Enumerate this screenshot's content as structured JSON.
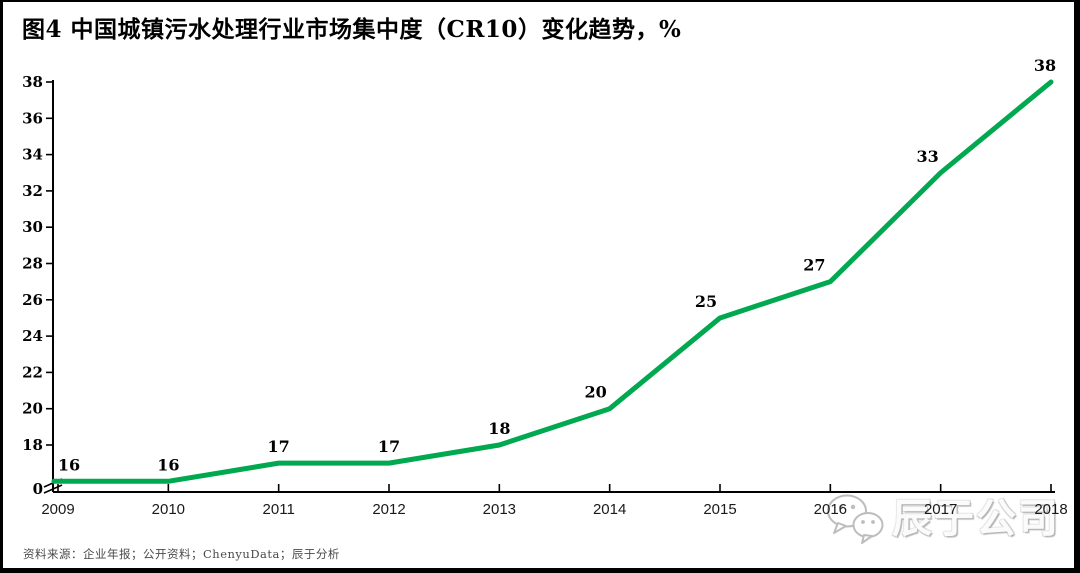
{
  "title": "图4 中国城镇污水处理行业市场集中度（CR10）变化趋势，%",
  "footer": {
    "source_text": "资料来源：企业年报；公开资料；ChenyuData；辰于分析"
  },
  "watermark": {
    "brand": "辰于公司",
    "icon": "wechat-icon"
  },
  "colors": {
    "line_green": "#00A84F",
    "axis_black": "#000000",
    "watermark_gray": "#bdbdbd"
  },
  "chart_data": {
    "type": "line",
    "title": "图4 中国城镇污水处理行业市场集中度（CR10）变化趋势，%",
    "unit": "%",
    "x": [
      2009,
      2010,
      2011,
      2012,
      2013,
      2014,
      2015,
      2016,
      2017,
      2018
    ],
    "values": [
      16,
      16,
      17,
      17,
      18,
      20,
      25,
      27,
      33,
      38
    ],
    "yticks": [
      0,
      18,
      20,
      22,
      24,
      26,
      28,
      30,
      32,
      34,
      36,
      38
    ],
    "ylim": [
      0,
      38
    ],
    "axis_break_above_zero": true,
    "grid": false,
    "legend": "none",
    "line_color": "#00A84F",
    "data_labels_shown": true
  }
}
